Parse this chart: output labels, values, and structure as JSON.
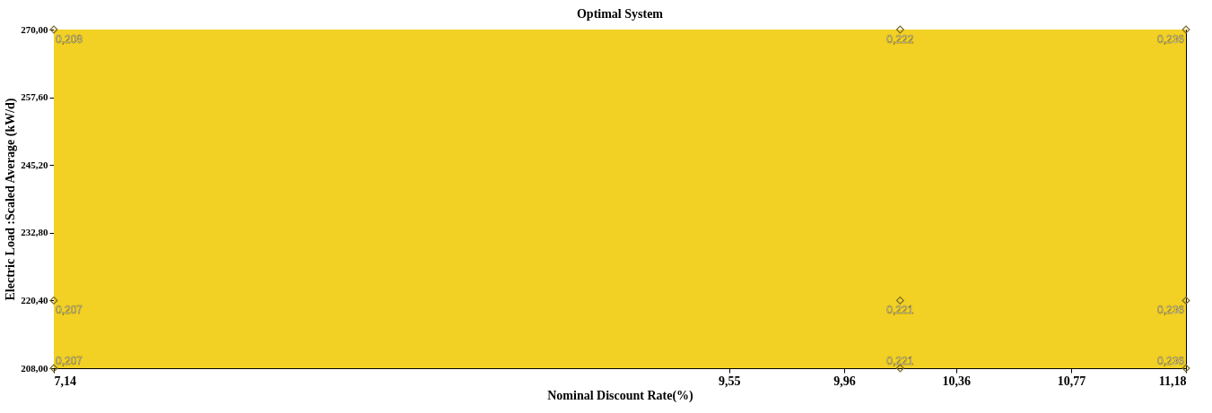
{
  "chart_data": {
    "type": "scatter",
    "title": "Optimal System",
    "xlabel": "Nominal Discount Rate(%)",
    "ylabel": "Electric Load :Scaled Average (kW/d)",
    "xlim": [
      7.14,
      11.18
    ],
    "xticks": [
      {
        "value": 7.14,
        "label": "7,14"
      },
      {
        "value": 9.55,
        "label": "9,55"
      },
      {
        "value": 9.96,
        "label": "9,96"
      },
      {
        "value": 10.36,
        "label": "10,36"
      },
      {
        "value": 10.77,
        "label": "10,77"
      },
      {
        "value": 11.18,
        "label": "11,18"
      }
    ],
    "ylim": [
      208,
      270
    ],
    "yticks": [
      {
        "value": 208,
        "label": "208,00"
      },
      {
        "value": 220.4,
        "label": "220,40"
      },
      {
        "value": 232.8,
        "label": "232,80"
      },
      {
        "value": 245.2,
        "label": "245,20"
      },
      {
        "value": 257.6,
        "label": "257,60"
      },
      {
        "value": 270,
        "label": "270,00"
      }
    ],
    "bands": [
      {
        "axis": "x",
        "from": 7.14,
        "to": 11.18,
        "color": "#f2d124"
      }
    ],
    "series": [
      {
        "color": "#7a6a2a",
        "x": [
          7.14,
          7.14,
          7.14,
          10.16,
          10.16,
          10.16,
          11.18,
          11.18,
          11.18
        ],
        "values": [
          270,
          220.4,
          208,
          270,
          220.4,
          208,
          270,
          220.4,
          208
        ]
      }
    ],
    "annotations": [
      {
        "text": "0,208",
        "x": 7.14,
        "y": 270
      },
      {
        "text": "0,207",
        "x": 7.14,
        "y": 220.4
      },
      {
        "text": "0,207",
        "x": 7.14,
        "y": 208
      },
      {
        "text": "0,222",
        "x": 10.16,
        "y": 270
      },
      {
        "text": "0,221",
        "x": 10.16,
        "y": 220.4
      },
      {
        "text": "0,221",
        "x": 10.16,
        "y": 208
      },
      {
        "text": "0,236",
        "x": 11.18,
        "y": 270
      },
      {
        "text": "0,236",
        "x": 11.18,
        "y": 220.4
      },
      {
        "text": "0,236",
        "x": 11.18,
        "y": 208
      }
    ],
    "marker": "diamond",
    "grid": false
  }
}
